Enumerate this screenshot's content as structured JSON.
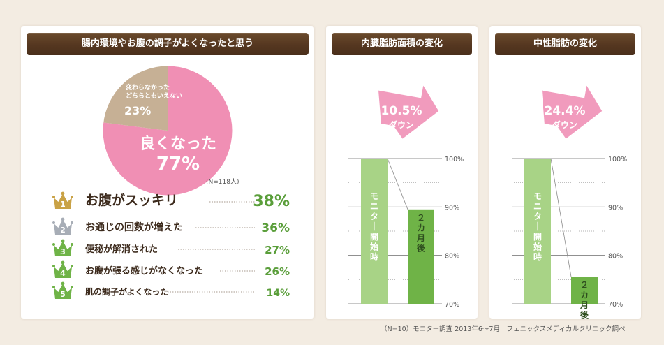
{
  "colors": {
    "background": "#f3ece2",
    "header": "#553720",
    "pie_pink": "#f08fb4",
    "pie_tan": "#c6b095",
    "green": "#5a9e3a",
    "green_light": "#a8d386",
    "green_mid": "#6fb347",
    "arrow_pink": "#f19bbd",
    "gold": "#c9a246",
    "silver": "#a7adb6"
  },
  "panels": {
    "survey": {
      "title": "腸内環境やお腹の調子がよくなったと思う"
    },
    "visceral": {
      "title": "内臓脂肪面積の変化"
    },
    "neutral": {
      "title": "中性脂肪の変化"
    }
  },
  "chart_data": [
    {
      "type": "pie",
      "slices": [
        {
          "label": "良くなった",
          "value": 77,
          "value_label": "77%",
          "color": "#f08fb4"
        },
        {
          "label_lines": [
            "変わらなかった",
            "どちらともいえない"
          ],
          "value": 23,
          "value_label": "23%",
          "color": "#c6b095"
        }
      ],
      "sample_note": "(N=118人)"
    },
    {
      "type": "table",
      "title": "ranking",
      "rows": [
        {
          "rank": "1",
          "label": "お腹がスッキリ",
          "value": 38,
          "value_label": "38%",
          "crown": "gold"
        },
        {
          "rank": "2",
          "label": "お通じの回数が増えた",
          "value": 36,
          "value_label": "36%",
          "crown": "silver"
        },
        {
          "rank": "3",
          "label": "便秘が解消された",
          "value": 27,
          "value_label": "27%",
          "crown": "green"
        },
        {
          "rank": "4",
          "label": "お腹が張る感じがなくなった",
          "value": 26,
          "value_label": "26%",
          "crown": "green"
        },
        {
          "rank": "5",
          "label": "肌の調子がよくなった",
          "value": 14,
          "value_label": "14%",
          "crown": "green"
        }
      ]
    },
    {
      "type": "bar",
      "arrow_lines": [
        "10.5%",
        "ダウン"
      ],
      "categories": [
        "モニター開始時",
        "２カ月後"
      ],
      "values": [
        100,
        89.5
      ],
      "ylim": [
        70,
        100
      ],
      "ticks": [
        {
          "value": 100,
          "label": "100%"
        },
        {
          "value": 90,
          "label": "90%"
        },
        {
          "value": 80,
          "label": "80%"
        },
        {
          "value": 70,
          "label": "70%"
        }
      ],
      "grid": true
    },
    {
      "type": "bar",
      "arrow_lines": [
        "24.4%",
        "ダウン"
      ],
      "categories": [
        "モニター開始時",
        "２カ月後"
      ],
      "values": [
        100,
        75.6
      ],
      "ylim": [
        70,
        100
      ],
      "ticks": [
        {
          "value": 100,
          "label": "100%"
        },
        {
          "value": 90,
          "label": "90%"
        },
        {
          "value": 80,
          "label": "80%"
        },
        {
          "value": 70,
          "label": "70%"
        }
      ],
      "grid": true
    }
  ],
  "footnote": "（N=10）モニター調査 2013年6〜7月　フェニックスメディカルクリニック調べ"
}
